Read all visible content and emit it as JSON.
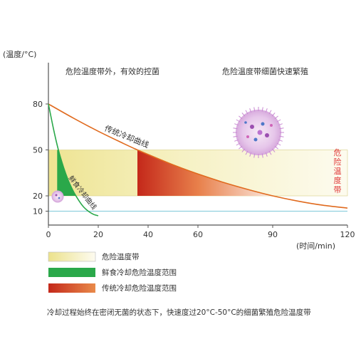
{
  "chart_data": {
    "type": "line",
    "y_label": "(温度/°C)",
    "x_label": "(时间/min)",
    "x_ticks": [
      0,
      20,
      40,
      60,
      90,
      120
    ],
    "y_ticks": [
      80,
      50,
      20,
      10
    ],
    "xlim": [
      0,
      120
    ],
    "ylim": [
      0,
      90
    ],
    "annotations": {
      "left": "危险温度带外，有效的控菌",
      "right": "危险温度带细菌快速繁殖",
      "band_side_label": "危险温度带"
    },
    "band": {
      "y_from": 20,
      "y_to": 50,
      "name": "危险温度带"
    },
    "reference_line": {
      "y": 10
    },
    "series": [
      {
        "name": "传统冷却曲线",
        "color": "#e06a1e",
        "x": [
          0,
          10,
          20,
          30,
          35,
          40,
          50,
          60,
          70,
          80,
          90,
          100,
          110,
          120
        ],
        "y": [
          80,
          70.8,
          62.2,
          54.3,
          50.5,
          47,
          40.3,
          34.3,
          28.9,
          24.2,
          20,
          16.6,
          13.9,
          12
        ]
      },
      {
        "name": "鲜食冷却曲线",
        "color": "#2aa84a",
        "x": [
          0,
          2,
          4,
          6,
          8,
          10,
          12,
          14,
          16,
          18,
          20
        ],
        "y": [
          80,
          64,
          50,
          39,
          30,
          23,
          17.5,
          13,
          10,
          8,
          7
        ]
      }
    ],
    "legend": [
      {
        "label": "危险温度带",
        "kind": "band"
      },
      {
        "label": "鲜食冷却危险温度范围",
        "kind": "fresh"
      },
      {
        "label": "传统冷却危险温度范围",
        "kind": "traditional"
      }
    ],
    "footnote": "冷却过程始终在密闭无菌的状态下，快速度过20°C-50°C的细菌繁殖危险温度带"
  },
  "colors": {
    "band": "#f3eda7",
    "fresh": "#2aa84a",
    "traditional_dark": "#c02a1a",
    "traditional_light": "#f6d7c6",
    "reference": "#7ec8d8"
  }
}
